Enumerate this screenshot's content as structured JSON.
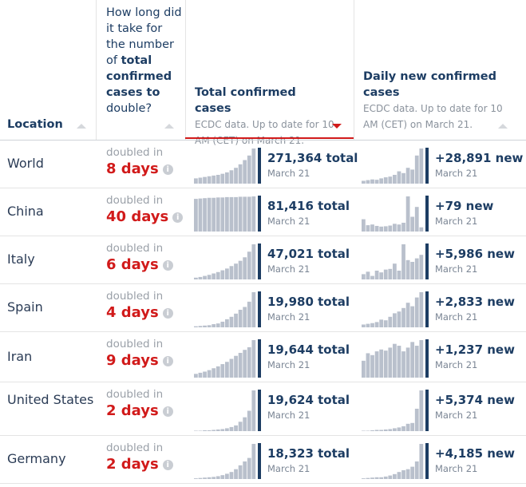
{
  "table": {
    "header": {
      "location": "Location",
      "doubling": [
        "How long did it take for the number of",
        "total confirmed cases to",
        "double?"
      ],
      "total": {
        "title": "Total confirmed cases",
        "note": "ECDC data. Up to date for 10 AM (CET) on March 21."
      },
      "daily": {
        "title": "Daily new confirmed cases",
        "note": "ECDC data. Up to date for 10 AM (CET) on March 21."
      }
    },
    "rows": [
      {
        "location": "World",
        "doubled": "doubled in",
        "days": "8 days",
        "total": "271,364 total",
        "total_date": "March 21",
        "new": "+28,891 new",
        "new_date": "March 21",
        "total_trend": [
          15,
          17,
          19,
          21,
          23,
          25,
          28,
          32,
          38,
          45,
          55,
          67,
          80,
          100
        ],
        "daily_trend": [
          8,
          10,
          12,
          11,
          15,
          18,
          20,
          25,
          35,
          30,
          45,
          40,
          80,
          100
        ]
      },
      {
        "location": "China",
        "doubled": "doubled in",
        "days": "40 days",
        "total": "81,416 total",
        "total_date": "March 21",
        "new": "+79 new",
        "new_date": "March 21",
        "total_trend": [
          93,
          94,
          95,
          96,
          96,
          97,
          97,
          98,
          98,
          98,
          99,
          99,
          99,
          100
        ],
        "daily_trend": [
          35,
          18,
          20,
          16,
          14,
          15,
          17,
          22,
          20,
          25,
          100,
          42,
          70,
          12
        ]
      },
      {
        "location": "Italy",
        "doubled": "doubled in",
        "days": "6 days",
        "total": "47,021 total",
        "total_date": "March 21",
        "new": "+5,986 new",
        "new_date": "March 21",
        "total_trend": [
          5,
          7,
          10,
          13,
          17,
          21,
          26,
          31,
          38,
          45,
          53,
          63,
          79,
          100
        ],
        "daily_trend": [
          15,
          22,
          10,
          25,
          20,
          28,
          30,
          45,
          25,
          100,
          55,
          50,
          60,
          70
        ]
      },
      {
        "location": "Spain",
        "doubled": "doubled in",
        "days": "4 days",
        "total": "19,980 total",
        "total_date": "March 21",
        "new": "+2,833 new",
        "new_date": "March 21",
        "total_trend": [
          3,
          4,
          5,
          6,
          9,
          11,
          16,
          23,
          30,
          39,
          50,
          58,
          73,
          100
        ],
        "daily_trend": [
          8,
          10,
          12,
          15,
          22,
          20,
          30,
          40,
          45,
          55,
          70,
          60,
          85,
          100
        ]
      },
      {
        "location": "Iran",
        "doubled": "doubled in",
        "days": "9 days",
        "total": "19,644 total",
        "total_date": "March 21",
        "new": "+1,237 new",
        "new_date": "March 21",
        "total_trend": [
          10,
          13,
          16,
          20,
          25,
          30,
          36,
          42,
          50,
          58,
          66,
          74,
          81,
          100
        ],
        "daily_trend": [
          45,
          65,
          60,
          70,
          75,
          72,
          80,
          90,
          85,
          70,
          80,
          95,
          85,
          100
        ]
      },
      {
        "location": "United States",
        "doubled": "doubled in",
        "days": "2 days",
        "total": "19,624 total",
        "total_date": "March 21",
        "new": "+5,374 new",
        "new_date": "March 21",
        "total_trend": [
          1,
          1,
          2,
          2,
          3,
          4,
          5,
          7,
          10,
          14,
          23,
          34,
          50,
          100
        ],
        "daily_trend": [
          1,
          1,
          2,
          3,
          3,
          4,
          5,
          7,
          9,
          12,
          18,
          20,
          55,
          100
        ]
      },
      {
        "location": "Germany",
        "doubled": "doubled in",
        "days": "2 days",
        "total": "18,323 total",
        "total_date": "March 21",
        "new": "+4,185 new",
        "new_date": "March 21",
        "total_trend": [
          2,
          3,
          4,
          5,
          6,
          8,
          11,
          15,
          20,
          28,
          39,
          50,
          60,
          100
        ],
        "daily_trend": [
          2,
          3,
          4,
          5,
          5,
          7,
          10,
          14,
          20,
          25,
          28,
          35,
          50,
          100
        ]
      }
    ]
  }
}
